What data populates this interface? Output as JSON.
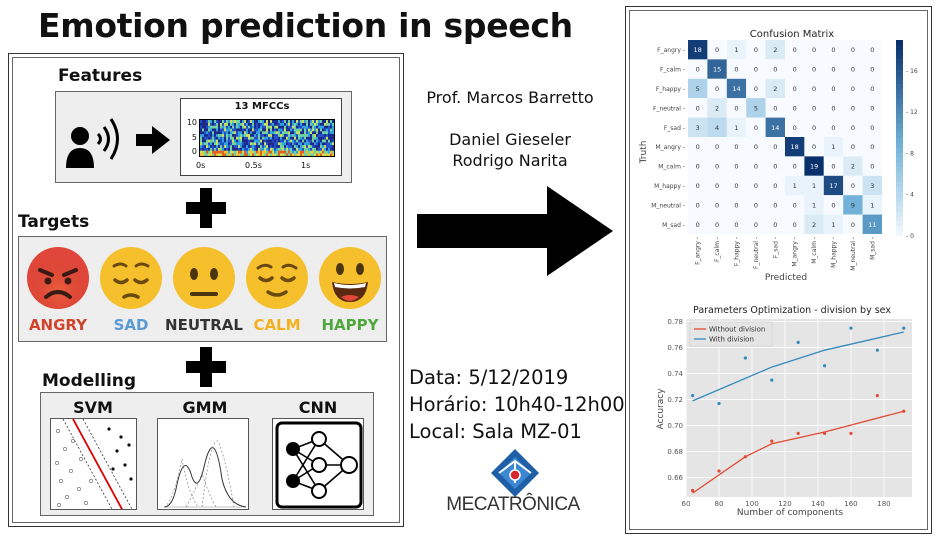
{
  "title": "Emotion prediction in speech",
  "features": {
    "label": "Features",
    "mfcc_title": "13 MFCCs",
    "y_ticks": [
      "10",
      "5",
      "0"
    ],
    "x_ticks": [
      "0s",
      "0.5s",
      "1s"
    ]
  },
  "targets": {
    "label": "Targets",
    "emotions": [
      {
        "name": "ANGRY",
        "color": "#d0442c"
      },
      {
        "name": "SAD",
        "color": "#5b9bd5"
      },
      {
        "name": "NEUTRAL",
        "color": "#333333"
      },
      {
        "name": "CALM",
        "color": "#f3b21d"
      },
      {
        "name": "HAPPY",
        "color": "#4fa83d"
      }
    ]
  },
  "modelling": {
    "label": "Modelling",
    "models": [
      "SVM",
      "GMM",
      "CNN"
    ]
  },
  "credits": {
    "professor": "Prof. Marcos Barretto",
    "students": [
      "Daniel Gieseler",
      "Rodrigo Narita"
    ]
  },
  "event": {
    "date": "Data: 5/12/2019",
    "time": "Horário: 10h40-12h00",
    "location": "Local: Sala MZ-01"
  },
  "logo_text": "MECATRÔNICA",
  "chart_data": [
    {
      "type": "heatmap",
      "title": "Confusion Matrix",
      "xlabel": "Predicted",
      "ylabel": "Truth",
      "labels": [
        "F_angry",
        "F_calm",
        "F_happy",
        "F_neutral",
        "F_sad",
        "M_angry",
        "M_calm",
        "M_happy",
        "M_neutral",
        "M_sad"
      ],
      "matrix": [
        [
          18,
          0,
          1,
          0,
          2,
          0,
          0,
          0,
          0,
          0
        ],
        [
          0,
          15,
          0,
          0,
          0,
          0,
          0,
          0,
          0,
          0
        ],
        [
          5,
          0,
          14,
          0,
          2,
          0,
          0,
          0,
          0,
          0
        ],
        [
          0,
          2,
          0,
          5,
          0,
          0,
          0,
          0,
          0,
          0
        ],
        [
          3,
          4,
          1,
          0,
          14,
          0,
          0,
          0,
          0,
          0
        ],
        [
          0,
          0,
          0,
          0,
          0,
          18,
          0,
          1,
          0,
          0
        ],
        [
          0,
          0,
          0,
          0,
          0,
          0,
          19,
          0,
          2,
          0
        ],
        [
          0,
          0,
          0,
          0,
          0,
          1,
          1,
          17,
          0,
          3
        ],
        [
          0,
          0,
          0,
          0,
          0,
          0,
          1,
          0,
          9,
          1
        ],
        [
          0,
          0,
          0,
          0,
          0,
          0,
          2,
          1,
          0,
          11
        ]
      ],
      "colorbar_ticks": [
        0,
        4,
        8,
        12,
        16
      ],
      "vmax": 19
    },
    {
      "type": "line",
      "title": "Parameters Optimization - division by sex",
      "xlabel": "Number of components",
      "ylabel": "Accuracy",
      "xlim": [
        60,
        197
      ],
      "ylim": [
        0.645,
        0.782
      ],
      "xticks": [
        60,
        80,
        100,
        120,
        140,
        160,
        180
      ],
      "yticks": [
        0.66,
        0.68,
        0.7,
        0.72,
        0.74,
        0.76,
        0.78
      ],
      "legend": "top-left",
      "series": [
        {
          "name": "Without division",
          "color": "#e24a33",
          "points": [
            [
              64,
              0.65
            ],
            [
              80,
              0.665
            ],
            [
              96,
              0.676
            ],
            [
              112,
              0.688
            ],
            [
              128,
              0.694
            ],
            [
              144,
              0.694
            ],
            [
              160,
              0.694
            ],
            [
              176,
              0.723
            ],
            [
              192,
              0.711
            ]
          ],
          "fit": [
            [
              64,
              0.648
            ],
            [
              96,
              0.676
            ],
            [
              112,
              0.686
            ],
            [
              144,
              0.695
            ],
            [
              192,
              0.711
            ]
          ]
        },
        {
          "name": "With division",
          "color": "#348abd",
          "points": [
            [
              64,
              0.723
            ],
            [
              80,
              0.717
            ],
            [
              96,
              0.752
            ],
            [
              112,
              0.735
            ],
            [
              128,
              0.764
            ],
            [
              144,
              0.746
            ],
            [
              160,
              0.775
            ],
            [
              176,
              0.758
            ],
            [
              192,
              0.775
            ]
          ],
          "fit": [
            [
              64,
              0.719
            ],
            [
              112,
              0.745
            ],
            [
              144,
              0.758
            ],
            [
              192,
              0.772
            ]
          ]
        }
      ]
    }
  ]
}
